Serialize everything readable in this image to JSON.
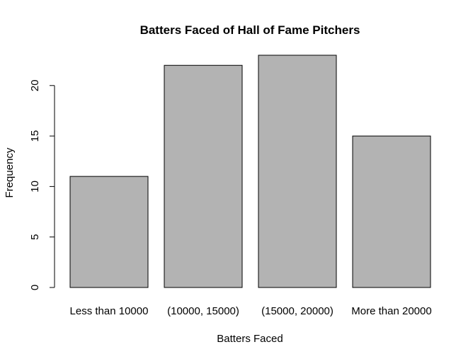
{
  "chart_data": {
    "type": "bar",
    "title": "Batters Faced of Hall of Fame Pitchers",
    "xlabel": "Batters Faced",
    "ylabel": "Frequency",
    "categories": [
      "Less than 10000",
      "(10000, 15000)",
      "(15000, 20000)",
      "More than 20000"
    ],
    "values": [
      11,
      22,
      23,
      15
    ],
    "ylim": [
      0,
      23
    ],
    "yticks": [
      0,
      5,
      10,
      15,
      20
    ],
    "grid": false,
    "legend": "none",
    "bar_color": "#b3b3b3"
  }
}
